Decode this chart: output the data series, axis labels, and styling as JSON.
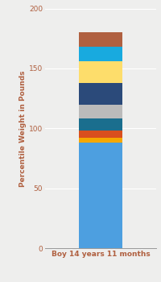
{
  "category": "Boy 14 years 11 months",
  "segments": [
    {
      "value": 88,
      "color": "#4D9FE0"
    },
    {
      "value": 4,
      "color": "#F5A800"
    },
    {
      "value": 6,
      "color": "#D94F1E"
    },
    {
      "value": 10,
      "color": "#1A6E8E"
    },
    {
      "value": 12,
      "color": "#BBBBBB"
    },
    {
      "value": 18,
      "color": "#2B4A7A"
    },
    {
      "value": 18,
      "color": "#FDDD6B"
    },
    {
      "value": 12,
      "color": "#18AADF"
    },
    {
      "value": 12,
      "color": "#B06040"
    }
  ],
  "ylim": [
    0,
    200
  ],
  "ylabel": "Percentile Weight in Pounds",
  "yticks": [
    0,
    50,
    100,
    150,
    200
  ],
  "background_color": "#EEEEED",
  "axis_bg_color": "#EEEEED",
  "xlabel_color": "#B06040",
  "ylabel_color": "#B06040",
  "tick_color": "#B06040",
  "bar_width": 0.35,
  "label_fontsize": 6.5
}
